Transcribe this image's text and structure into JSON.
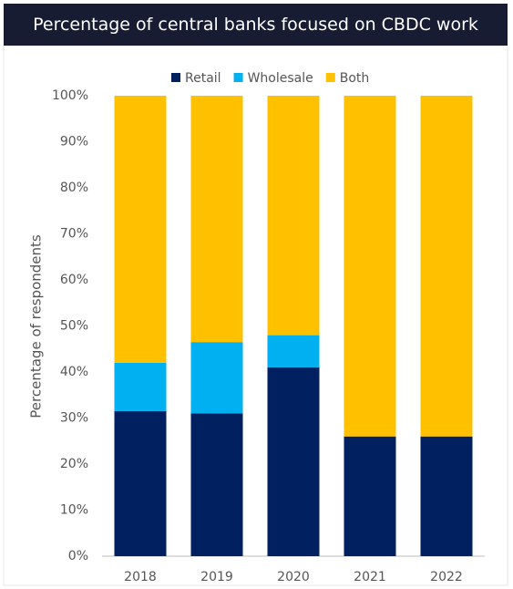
{
  "chart_data": {
    "type": "stacked_bar",
    "title": "Percentage of central banks focused on CBDC work",
    "y_label": "Percentage of respondents",
    "categories": [
      "2018",
      "2019",
      "2020",
      "2021",
      "2022"
    ],
    "series": [
      {
        "name": "Retail",
        "color": "#002060",
        "values": [
          31.5,
          31,
          41,
          26,
          26
        ]
      },
      {
        "name": "Wholesale",
        "color": "#00b0f0",
        "values": [
          10.5,
          15.5,
          7,
          0,
          0
        ]
      },
      {
        "name": "Both",
        "color": "#ffc000",
        "values": [
          58,
          53.5,
          52,
          74,
          74
        ]
      }
    ],
    "ylim": [
      0,
      100
    ],
    "yticks": [
      {
        "value": 0,
        "label": "0%"
      },
      {
        "value": 10,
        "label": "10%"
      },
      {
        "value": 20,
        "label": "20%"
      },
      {
        "value": 30,
        "label": "30%"
      },
      {
        "value": 40,
        "label": "40%"
      },
      {
        "value": 50,
        "label": "50%"
      },
      {
        "value": 60,
        "label": "60%"
      },
      {
        "value": 70,
        "label": "70%"
      },
      {
        "value": 80,
        "label": "80%"
      },
      {
        "value": 90,
        "label": "90%"
      },
      {
        "value": 100,
        "label": "100%"
      }
    ],
    "legend": "top"
  }
}
